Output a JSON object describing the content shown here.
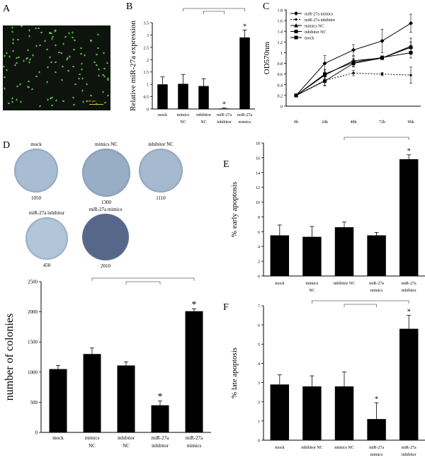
{
  "panels": {
    "a": "A",
    "b": "B",
    "c": "C",
    "d": "D",
    "e": "E",
    "f": "F"
  },
  "micrograph": {
    "scale_text": "100 μm"
  },
  "plates": [
    {
      "label": "mock",
      "count": "1050",
      "color": "#a8bdd3"
    },
    {
      "label": "mimics NC",
      "count": "1300",
      "color": "#98aec5"
    },
    {
      "label": "inhibitor NC",
      "count": "1110",
      "color": "#a5b9cf"
    },
    {
      "label": "miR-27a inhibitor",
      "count": "450",
      "color": "#b2c6da"
    },
    {
      "label": "miR-27a mimics",
      "count": "2010",
      "color": "#56678a"
    }
  ],
  "chart_data": [
    {
      "id": "B",
      "type": "bar",
      "ylabel": "Relative miR-27a expression",
      "categories": [
        [
          "mock",
          ""
        ],
        [
          "mimics",
          "NC"
        ],
        [
          "inhibitor",
          "NC"
        ],
        [
          "miR-27a",
          "inhibitor"
        ],
        [
          "miR-27a",
          "mimics"
        ]
      ],
      "values": [
        1.0,
        1.02,
        0.93,
        0.02,
        2.9
      ],
      "errors": [
        0.3,
        0.38,
        0.3,
        0.02,
        0.3
      ],
      "ylim": [
        0,
        3.5
      ],
      "yticks": [
        "0",
        "0.5",
        "1",
        "1.5",
        "2",
        "2.5",
        "3",
        "3.5"
      ],
      "stars": [
        3,
        4
      ]
    },
    {
      "id": "C",
      "type": "line",
      "ylabel": "OD570nm",
      "x": [
        "0h",
        "24h",
        "48h",
        "72h",
        "96h"
      ],
      "ylim": [
        0,
        1.8
      ],
      "yticks": [
        "0",
        "0.2",
        "0.4",
        "0.6",
        "0.8",
        "1",
        "1.2",
        "1.4",
        "1.6",
        "1.8"
      ],
      "series": [
        {
          "name": "miR-27a mimics",
          "values": [
            0.2,
            0.8,
            1.05,
            1.22,
            1.55
          ],
          "errors": [
            0.02,
            0.15,
            0.1,
            0.22,
            0.17
          ],
          "marker": "diamond",
          "dash": ""
        },
        {
          "name": "miR-27a inhibitor",
          "values": [
            0.2,
            0.48,
            0.62,
            0.6,
            0.58
          ],
          "errors": [
            0.02,
            0.1,
            0.05,
            0.03,
            0.15
          ],
          "marker": "small-square",
          "dash": "2,2"
        },
        {
          "name": "mimics NC",
          "values": [
            0.2,
            0.58,
            0.85,
            0.9,
            1.12
          ],
          "errors": [
            0.02,
            0.1,
            0.08,
            0.03,
            0.15
          ],
          "marker": "triangle",
          "dash": ""
        },
        {
          "name": "inhibitor NC",
          "values": [
            0.2,
            0.6,
            0.82,
            0.91,
            1.0
          ],
          "errors": [
            0.02,
            0.08,
            0.07,
            0.03,
            0.1
          ],
          "marker": "square",
          "dash": ""
        },
        {
          "name": "mock",
          "values": [
            0.2,
            0.47,
            0.8,
            0.9,
            1.1
          ],
          "errors": [
            0.02,
            0.08,
            0.07,
            0.03,
            0.1
          ],
          "marker": "square",
          "dash": ""
        }
      ],
      "stars": [],
      "legend": "top-left"
    },
    {
      "id": "D",
      "type": "bar",
      "ylabel": "number of colonies",
      "categories": [
        [
          "mock",
          ""
        ],
        [
          "mimics",
          "NC"
        ],
        [
          "inhibitor",
          "NC"
        ],
        [
          "miR-27a",
          "inhibitor"
        ],
        [
          "miR-27a",
          "mimics"
        ]
      ],
      "values": [
        1050,
        1300,
        1110,
        450,
        2010
      ],
      "errors": [
        60,
        100,
        60,
        70,
        40
      ],
      "ylim": [
        0,
        2500
      ],
      "yticks": [
        "0",
        "500",
        "1000",
        "1500",
        "2000",
        "2500"
      ],
      "stars": [
        3,
        4
      ]
    },
    {
      "id": "E",
      "type": "bar",
      "ylabel": "% early apoptosis",
      "categories": [
        [
          "mock",
          ""
        ],
        [
          "mimics",
          "NC"
        ],
        [
          "inhibitor NC",
          ""
        ],
        [
          "miR-27a",
          "mimics"
        ],
        [
          "miR-27a",
          "inhibitor"
        ]
      ],
      "values": [
        5.5,
        5.3,
        6.6,
        5.5,
        15.8
      ],
      "errors": [
        1.4,
        1.4,
        0.7,
        0.4,
        0.6
      ],
      "ylim": [
        0,
        18
      ],
      "yticks": [
        "0",
        "2",
        "4",
        "6",
        "8",
        "10",
        "12",
        "14",
        "16",
        "18"
      ],
      "stars": [
        4
      ]
    },
    {
      "id": "F",
      "type": "bar",
      "ylabel": "% late apoptosis",
      "categories": [
        [
          "mock",
          ""
        ],
        [
          "inhibitor NC",
          ""
        ],
        [
          "mimics NC",
          ""
        ],
        [
          "miR-27a",
          "mimics"
        ],
        [
          "miR-27a",
          "inhibitor"
        ]
      ],
      "values": [
        2.9,
        2.8,
        2.8,
        1.1,
        5.8
      ],
      "errors": [
        0.5,
        0.55,
        0.75,
        0.85,
        0.7
      ],
      "ylim": [
        0,
        7
      ],
      "yticks": [
        "0",
        "1",
        "2",
        "3",
        "4",
        "5",
        "6",
        "7"
      ],
      "stars": [
        3,
        4
      ]
    }
  ]
}
